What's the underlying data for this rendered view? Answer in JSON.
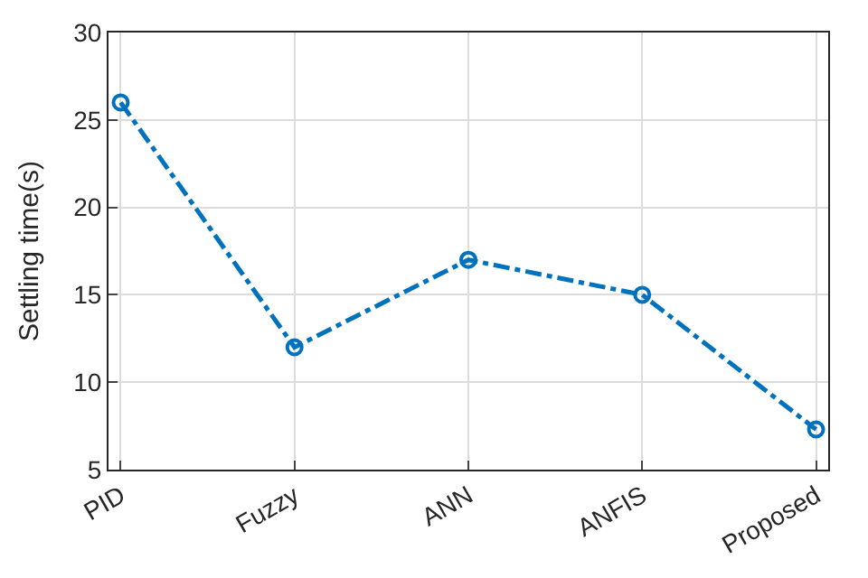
{
  "chart_data": {
    "type": "line",
    "ylabel": "Settling time(s)",
    "categories": [
      "PID",
      "Fuzzy",
      "ANN",
      "ANFIS",
      "Proposed"
    ],
    "series": [
      {
        "color": "#0072bd",
        "values": [
          26,
          12,
          17,
          15,
          7.3
        ]
      }
    ],
    "ylim": [
      5,
      30
    ],
    "yticks": [
      5,
      10,
      15,
      20,
      25,
      30
    ],
    "grid": true,
    "marker": "circle",
    "line_style": "dashed"
  }
}
